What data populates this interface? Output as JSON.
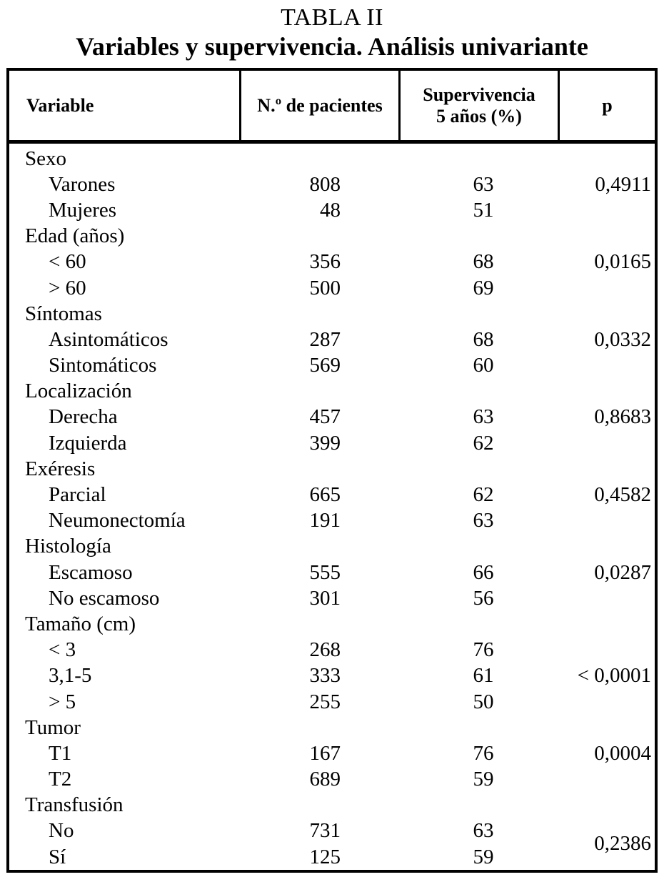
{
  "caption": {
    "number": "TABLA II",
    "title": "Variables y supervivencia. Análisis univariante"
  },
  "table": {
    "headers": {
      "variable": "Variable",
      "patients": "N.º de pacientes",
      "survival_line1": "Supervivencia",
      "survival_line2": "5 años (%)",
      "p": "p"
    },
    "rows": [
      {
        "variable": "Sexo",
        "n": "",
        "surv": "",
        "p": ""
      },
      {
        "variable": "Varones",
        "n": "808",
        "surv": "63",
        "p": "0,4911"
      },
      {
        "variable": "Mujeres",
        "n": "48",
        "surv": "51",
        "p": ""
      },
      {
        "variable": "Edad (años)",
        "n": "",
        "surv": "",
        "p": ""
      },
      {
        "variable": "< 60",
        "n": "356",
        "surv": "68",
        "p": "0,0165"
      },
      {
        "variable": "> 60",
        "n": "500",
        "surv": "69",
        "p": ""
      },
      {
        "variable": "Síntomas",
        "n": "",
        "surv": "",
        "p": ""
      },
      {
        "variable": "Asintomáticos",
        "n": "287",
        "surv": "68",
        "p": "0,0332"
      },
      {
        "variable": "Sintomáticos",
        "n": "569",
        "surv": "60",
        "p": ""
      },
      {
        "variable": "Localización",
        "n": "",
        "surv": "",
        "p": ""
      },
      {
        "variable": "Derecha",
        "n": "457",
        "surv": "63",
        "p": "0,8683"
      },
      {
        "variable": "Izquierda",
        "n": "399",
        "surv": "62",
        "p": ""
      },
      {
        "variable": "Exéresis",
        "n": "",
        "surv": "",
        "p": ""
      },
      {
        "variable": "Parcial",
        "n": "665",
        "surv": "62",
        "p": "0,4582"
      },
      {
        "variable": "Neumonectomía",
        "n": "191",
        "surv": "63",
        "p": ""
      },
      {
        "variable": "Histología",
        "n": "",
        "surv": "",
        "p": ""
      },
      {
        "variable": "Escamoso",
        "n": "555",
        "surv": "66",
        "p": "0,0287"
      },
      {
        "variable": "No escamoso",
        "n": "301",
        "surv": "56",
        "p": ""
      },
      {
        "variable": "Tamaño (cm)",
        "n": "",
        "surv": "",
        "p": ""
      },
      {
        "variable": "< 3",
        "n": "268",
        "surv": "76",
        "p": ""
      },
      {
        "variable": "3,1-5",
        "n": "333",
        "surv": "61",
        "p": "< 0,0001"
      },
      {
        "variable": "> 5",
        "n": "255",
        "surv": "50",
        "p": ""
      },
      {
        "variable": "Tumor",
        "n": "",
        "surv": "",
        "p": ""
      },
      {
        "variable": "T1",
        "n": "167",
        "surv": "76",
        "p": "0,0004"
      },
      {
        "variable": "T2",
        "n": "689",
        "surv": "59",
        "p": ""
      },
      {
        "variable": "Transfusión",
        "n": "",
        "surv": "",
        "p": ""
      },
      {
        "variable": "No",
        "n": "731",
        "surv": "63",
        "p": "0,2386"
      },
      {
        "variable": "Sí",
        "n": "125",
        "surv": "59",
        "p": ""
      }
    ]
  }
}
